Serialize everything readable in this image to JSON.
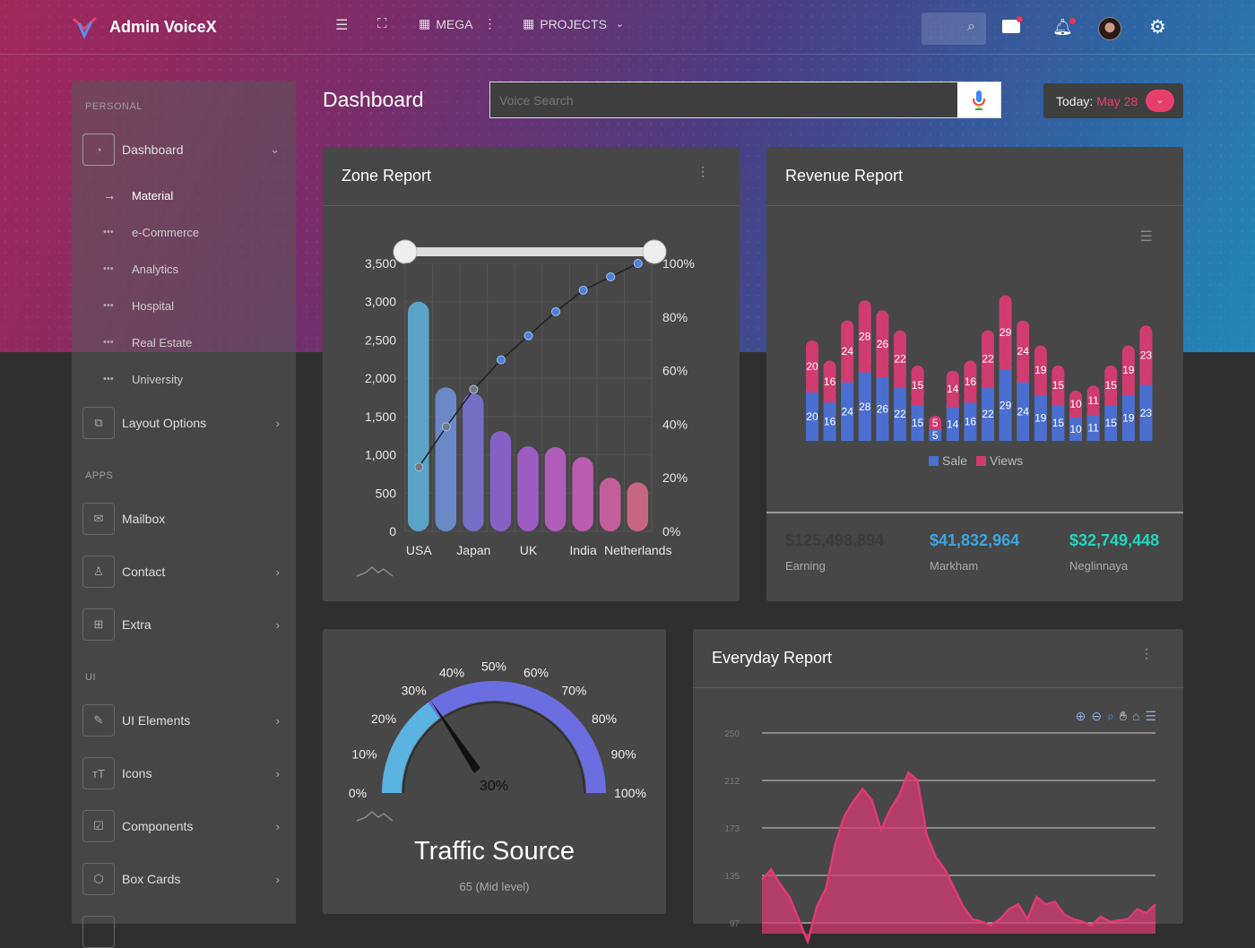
{
  "app": {
    "title": "Admin VoiceX"
  },
  "topbar": {
    "mega": "MEGA",
    "projects": "PROJECTS"
  },
  "sidebar": {
    "personal": "PERSONAL",
    "dashboard": "Dashboard",
    "subs": [
      "Material",
      "e-Commerce",
      "Analytics",
      "Hospital",
      "Real Estate",
      "University"
    ],
    "layout": "Layout Options",
    "apps": "APPS",
    "mailbox": "Mailbox",
    "contact": "Contact",
    "extra": "Extra",
    "ui": "UI",
    "ui_elements": "UI Elements",
    "icons": "Icons",
    "components": "Components",
    "box_cards": "Box Cards"
  },
  "page": {
    "title": "Dashboard",
    "search_placeholder": "Voice Search",
    "today_label": "Today:",
    "today_date": "May 28"
  },
  "zone": {
    "title": "Zone Report"
  },
  "revenue": {
    "title": "Revenue Report",
    "stats": [
      {
        "value": "$125,498,894",
        "label": "Earning",
        "color": "#3b3b3b"
      },
      {
        "value": "$41,832,964",
        "label": "Markham",
        "color": "#3ba5e0"
      },
      {
        "value": "$32,749,448",
        "label": "Neglinnaya",
        "color": "#1fd6c0"
      }
    ]
  },
  "traffic": {
    "title": "Traffic Source",
    "subtitle": "65 (Mid level)"
  },
  "everyday": {
    "title": "Everyday Report"
  },
  "chart_data": [
    {
      "type": "bar",
      "chart": "zone-report",
      "categories": [
        "USA",
        "",
        "Japan",
        "",
        "UK",
        "",
        "India",
        "",
        "Netherlands"
      ],
      "values": [
        3000,
        1880,
        1800,
        1310,
        1110,
        1100,
        970,
        700,
        640
      ],
      "cumulative_percent": [
        24,
        39,
        53,
        64,
        73,
        82,
        90,
        95,
        100
      ],
      "ylim": [
        0,
        3500
      ],
      "y2lim": [
        0,
        100
      ],
      "yticks": [
        "0",
        "500",
        "1,000",
        "1,500",
        "2,000",
        "2,500",
        "3,000",
        "3,500"
      ],
      "y2ticks": [
        "0%",
        "20%",
        "40%",
        "60%",
        "80%",
        "100%"
      ],
      "bar_colors": [
        "#5aa3c7",
        "#6b89c7",
        "#746ec4",
        "#8660c4",
        "#9c5cc2",
        "#b05cba",
        "#bb5cb0",
        "#c25f9a",
        "#c76680"
      ]
    },
    {
      "type": "bar",
      "chart": "revenue-report",
      "stacked": true,
      "series": [
        {
          "name": "Sale",
          "color": "#4a6fd1",
          "values": [
            20,
            16,
            24,
            28,
            26,
            22,
            15,
            5,
            14,
            16,
            22,
            29,
            24,
            19,
            15,
            10,
            11,
            15,
            19,
            23
          ]
        },
        {
          "name": "Views",
          "color": "#d03c70",
          "values": [
            20,
            16,
            24,
            28,
            26,
            22,
            15,
            5,
            14,
            16,
            22,
            29,
            24,
            19,
            15,
            10,
            11,
            15,
            19,
            23
          ]
        }
      ]
    },
    {
      "type": "gauge",
      "chart": "traffic-source",
      "value": 30,
      "value_label": "30%",
      "ticks": [
        "0%",
        "10%",
        "20%",
        "30%",
        "40%",
        "50%",
        "60%",
        "70%",
        "80%",
        "90%",
        "100%"
      ]
    },
    {
      "type": "area",
      "chart": "everyday-report",
      "yticks": [
        "250",
        "212",
        "173",
        "135",
        "97"
      ],
      "color": "#e03a74",
      "values": [
        132,
        140,
        128,
        118,
        100,
        82,
        110,
        125,
        160,
        183,
        195,
        205,
        196,
        172,
        188,
        200,
        218,
        212,
        168,
        150,
        140,
        125,
        110,
        100,
        98,
        95,
        100,
        108,
        112,
        100,
        118,
        112,
        114,
        104,
        100,
        98,
        95,
        102,
        98,
        99,
        100,
        108,
        105,
        112
      ]
    }
  ]
}
